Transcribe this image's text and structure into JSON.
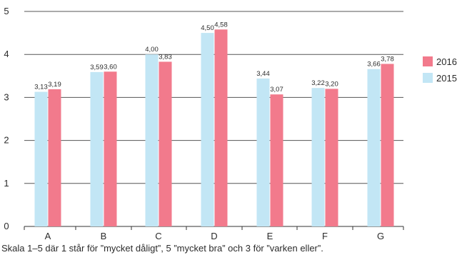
{
  "chart_data": {
    "type": "bar",
    "categories": [
      "A",
      "B",
      "C",
      "D",
      "E",
      "F",
      "G"
    ],
    "series": [
      {
        "name": "2015",
        "values": [
          3.13,
          3.59,
          4.0,
          4.5,
          3.44,
          3.22,
          3.66
        ],
        "labels": [
          "3,13",
          "3,59",
          "4,00",
          "4,50",
          "3,44",
          "3,22",
          "3,66"
        ],
        "color": "#c2e6f5"
      },
      {
        "name": "2016",
        "values": [
          3.19,
          3.6,
          3.83,
          4.58,
          3.07,
          3.2,
          3.78
        ],
        "labels": [
          "3,19",
          "3,60",
          "3,83",
          "4,58",
          "3,07",
          "3,20",
          "3,78"
        ],
        "color": "#f27a8c"
      }
    ],
    "ylim": [
      0,
      5
    ],
    "yticks": [
      "0",
      "1",
      "2",
      "3",
      "4",
      "5"
    ],
    "grid": true,
    "legend": {
      "placement": "right",
      "order": [
        "2016",
        "2015"
      ]
    }
  },
  "caption": "Skala 1–5 där 1 står för ”mycket dåligt”, 5 ”mycket bra” och 3 för ”varken eller”.",
  "colors": {
    "axis": "#333333",
    "grid": "#555555",
    "text": "#2b2b2b"
  }
}
